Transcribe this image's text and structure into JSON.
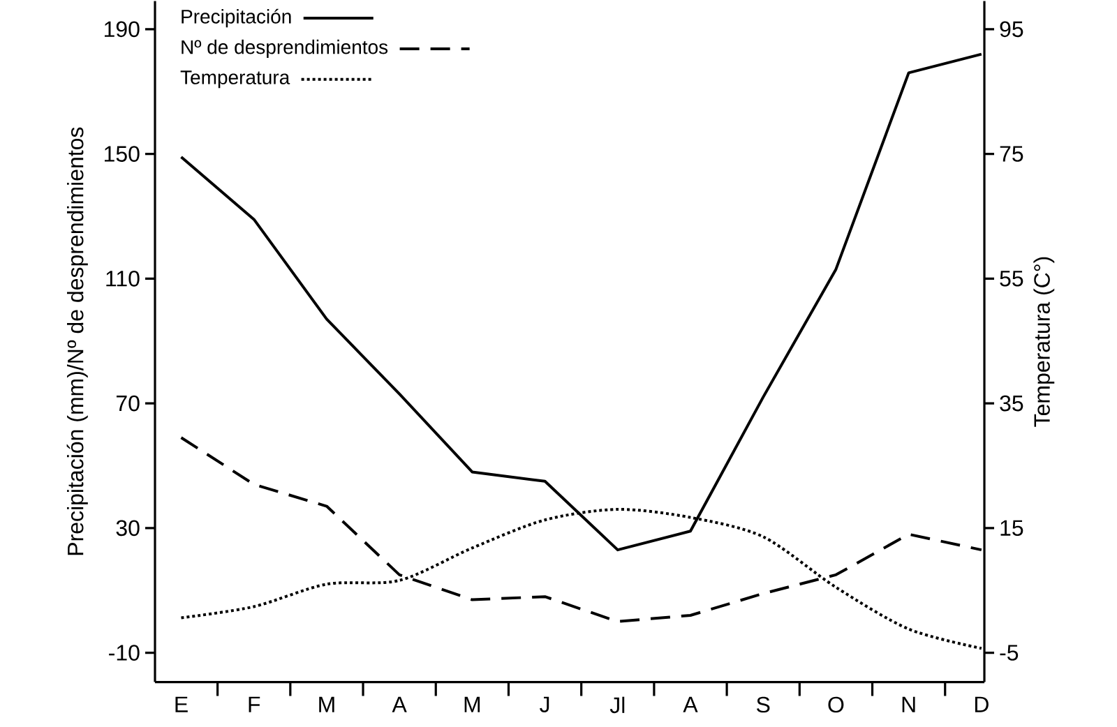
{
  "chart_data": {
    "type": "line",
    "categories": [
      "E",
      "F",
      "M",
      "A",
      "M",
      "J",
      "Jl",
      "A",
      "S",
      "O",
      "N",
      "D"
    ],
    "ylabel": "Precipitación (mm)/Nº de desprendimientos",
    "y2label": "Temperatura (C°)",
    "ylim": [
      -19.4,
      199
    ],
    "yticks": [
      -10,
      30,
      70,
      110,
      150,
      190
    ],
    "y2lim": [
      -9.7,
      99.5
    ],
    "y2ticks": [
      -5,
      15,
      35,
      55,
      75,
      95
    ],
    "legend": "top left",
    "series": [
      {
        "name": "Precipitación",
        "color": "#000000",
        "line_style": "solid",
        "values": [
          149,
          129,
          97,
          73,
          48,
          45,
          23,
          29,
          72,
          113,
          176,
          182
        ]
      },
      {
        "name": "Nº de desprendimientos",
        "color": "#000000",
        "line_style": "dashed",
        "values": [
          59,
          44,
          37,
          15,
          7,
          8,
          0,
          2,
          9,
          15,
          28,
          23
        ]
      },
      {
        "name": "Temperatura",
        "color": "#000000",
        "line_style": "dotted",
        "axis": "y2",
        "values": [
          0.6,
          2.4,
          6,
          6.6,
          11.8,
          16.3,
          18,
          16.7,
          13.6,
          5.5,
          -1.2,
          -4.3
        ]
      }
    ]
  }
}
